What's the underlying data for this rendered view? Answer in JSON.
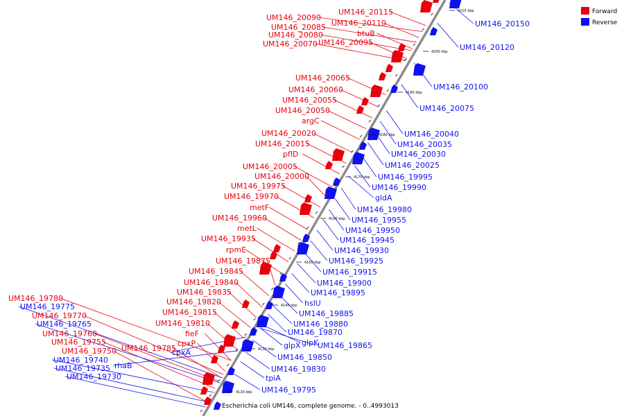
{
  "caption": "Escherichia coli UM146, complete genome. - 0..4993013",
  "legend": [
    {
      "label": "Forward",
      "color": "#e8000b"
    },
    {
      "label": "Reverse",
      "color": "#1010f0"
    }
  ],
  "colors": {
    "forward": "#e8000b",
    "reverse": "#1010f0",
    "backbone": "#8c8c8c"
  },
  "ticks": [
    "4120 kbp",
    "4130 kbp",
    "4140 kbp",
    "4150 kbp",
    "4160 kbp",
    "4170 kbp",
    "4180 kbp",
    "4190 kbp",
    "4200 kbp",
    "4210 kbp"
  ],
  "forward_labels": [
    "UM146_20115",
    "UM146_20090",
    "UM146_20110",
    "UM146_20085",
    "btuB",
    "UM146_20080",
    "UM146_20095",
    "UM146_20070",
    "UM146_20065",
    "UM146_20060",
    "UM146_20055",
    "UM146_20050",
    "argC",
    "UM146_20020",
    "UM146_20015",
    "pflD",
    "UM146_20005",
    "UM146_20000",
    "UM146_19975",
    "UM146_19970",
    "metF",
    "UM146_19960",
    "metL",
    "UM146_19935",
    "rpmE",
    "UM146_19875",
    "UM146_19845",
    "UM146_19840",
    "UM146_19835",
    "UM146_19820",
    "UM146_19815",
    "UM146_19810",
    "fieF",
    "UM146_19780",
    "cpxP",
    "UM146_19770",
    "UM146_19760",
    "UM146_19755",
    "UM146_19785",
    "UM146_19750"
  ],
  "reverse_labels": [
    "UM146_20150",
    "UM146_20120",
    "UM146_20100",
    "UM146_20075",
    "UM146_20040",
    "UM146_20035",
    "UM146_20030",
    "UM146_20025",
    "UM146_19995",
    "UM146_19990",
    "gldA",
    "UM146_19980",
    "UM146_19955",
    "UM146_19950",
    "UM146_19945",
    "UM146_19930",
    "UM146_19925",
    "UM146_19915",
    "UM146_19900",
    "UM146_19895",
    "hslU",
    "UM146_19885",
    "UM146_19880",
    "UM146_19870",
    "glpK",
    "glpX",
    "UM146_19865",
    "UM146_19850",
    "UM146_19830",
    "tpiA",
    "UM146_19795",
    "UM146_19775",
    "UM146_19765",
    "cpxA",
    "UM146_19740",
    "rhaB",
    "UM146_19735",
    "UM146_19730"
  ]
}
